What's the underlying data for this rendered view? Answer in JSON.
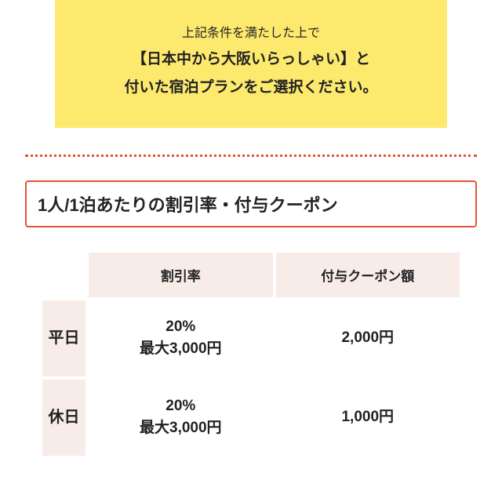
{
  "notice": {
    "line1": "上記条件を満たした上で",
    "line2": "【日本中から大阪いらっしゃい】と",
    "line3": "付いた宿泊プランをご選択ください。"
  },
  "heading": "1人/1泊あたりの割引率・付与クーポン",
  "table": {
    "headers": {
      "rate": "割引率",
      "coupon": "付与クーポン額"
    },
    "rows": [
      {
        "label": "平日",
        "rate_pct": "20%",
        "rate_max": "最大3,000円",
        "coupon": "2,000円"
      },
      {
        "label": "休日",
        "rate_pct": "20%",
        "rate_max": "最大3,000円",
        "coupon": "1,000円"
      }
    ]
  },
  "colors": {
    "notice_bg": "#fce96e",
    "accent": "#e35336",
    "table_head_bg": "#f8ece9",
    "text": "#222222",
    "page_bg": "#ffffff"
  }
}
